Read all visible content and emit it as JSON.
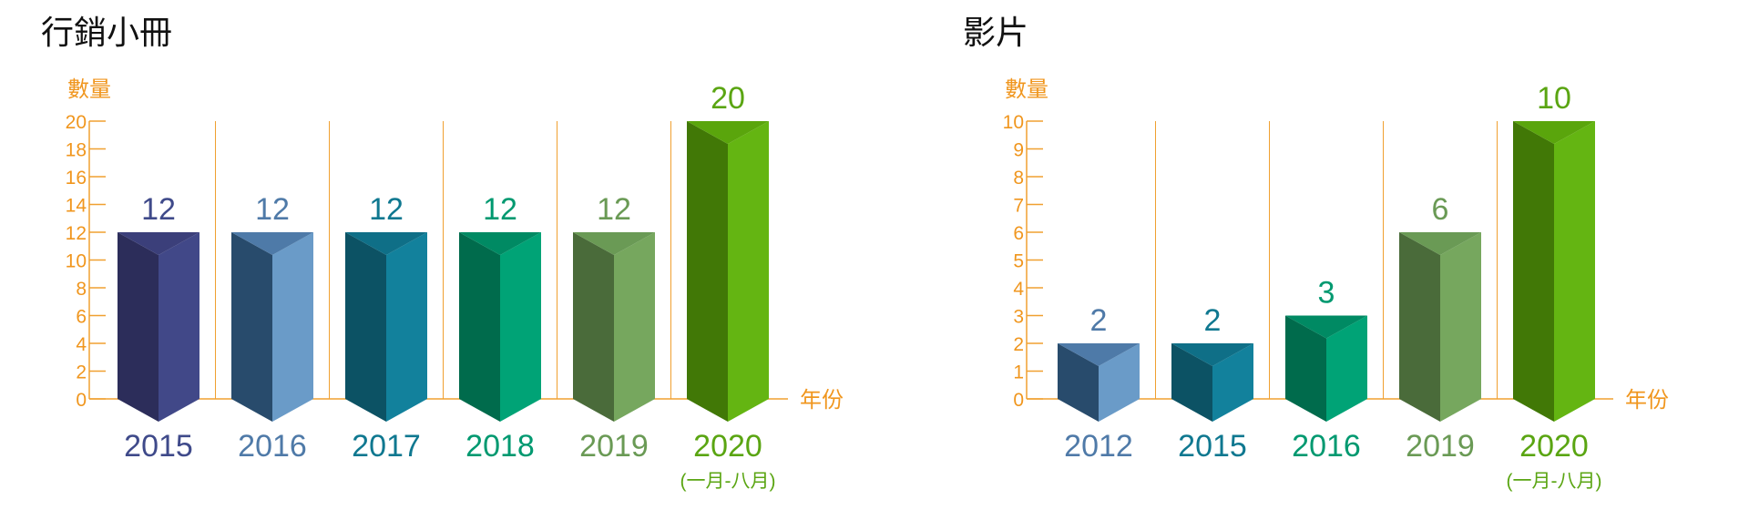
{
  "colors": {
    "axis": "#f0a030",
    "axis_text": "#f0961e"
  },
  "chart_data": [
    {
      "type": "bar",
      "title": "行銷小冊",
      "ylabel": "數量",
      "xlabel": "年份",
      "ylim": [
        0,
        20
      ],
      "yticks": [
        0,
        2,
        4,
        6,
        8,
        10,
        12,
        14,
        16,
        18,
        20
      ],
      "categories": [
        "2015",
        "2016",
        "2017",
        "2018",
        "2019",
        "2020"
      ],
      "category_notes": [
        "",
        "",
        "",
        "",
        "",
        "(一月-八月)"
      ],
      "values": [
        12,
        12,
        12,
        12,
        12,
        20
      ],
      "value_labels": [
        "12",
        "12",
        "12",
        "12",
        "12",
        "20"
      ],
      "bar_colors": [
        {
          "dark": "#2c2d5a",
          "light": "#414888",
          "top": "#3b3f7a",
          "label": "#3f4a8a"
        },
        {
          "dark": "#284b6c",
          "light": "#6a9bc8",
          "top": "#4e7aa8",
          "label": "#4f7aa8"
        },
        {
          "dark": "#0c5264",
          "light": "#12819c",
          "top": "#0f6f87",
          "label": "#0f7890"
        },
        {
          "dark": "#006b4c",
          "light": "#00a376",
          "top": "#008a63",
          "label": "#009970"
        },
        {
          "dark": "#4a6b3a",
          "light": "#76a75e",
          "top": "#6a9a55",
          "label": "#6a9a55"
        },
        {
          "dark": "#417806",
          "light": "#64b512",
          "top": "#5aa50c",
          "label": "#5aa512"
        }
      ],
      "grid": false
    },
    {
      "type": "bar",
      "title": "影片",
      "ylabel": "數量",
      "xlabel": "年份",
      "ylim": [
        0,
        10
      ],
      "yticks": [
        0,
        1,
        2,
        3,
        4,
        5,
        6,
        7,
        8,
        9,
        10
      ],
      "categories": [
        "2012",
        "2015",
        "2016",
        "2019",
        "2020"
      ],
      "category_notes": [
        "",
        "",
        "",
        "",
        "(一月-八月)"
      ],
      "values": [
        2,
        2,
        3,
        6,
        10
      ],
      "value_labels": [
        "2",
        "2",
        "3",
        "6",
        "10"
      ],
      "bar_colors": [
        {
          "dark": "#284b6c",
          "light": "#6a9bc8",
          "top": "#4e7aa8",
          "label": "#4f7aa8"
        },
        {
          "dark": "#0c5264",
          "light": "#12819c",
          "top": "#0f6f87",
          "label": "#0f7890"
        },
        {
          "dark": "#006b4c",
          "light": "#00a376",
          "top": "#008a63",
          "label": "#009970"
        },
        {
          "dark": "#4a6b3a",
          "light": "#76a75e",
          "top": "#6a9a55",
          "label": "#6a9a55"
        },
        {
          "dark": "#417806",
          "light": "#64b512",
          "top": "#5aa50c",
          "label": "#5aa512"
        }
      ],
      "grid": false
    }
  ]
}
